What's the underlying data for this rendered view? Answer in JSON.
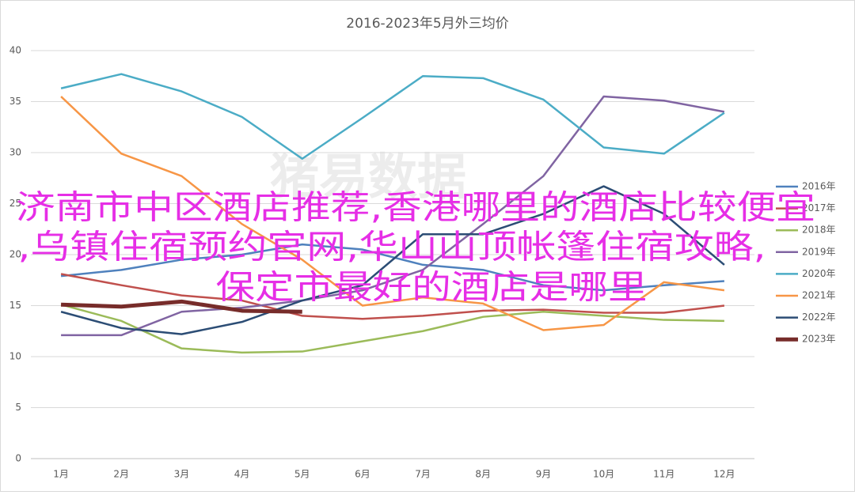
{
  "chart_data": {
    "type": "line",
    "title": "2016-2023年5月外三均价",
    "watermark": "猪易数据",
    "categories": [
      "1月",
      "2月",
      "3月",
      "4月",
      "5月",
      "6月",
      "7月",
      "8月",
      "9月",
      "10月",
      "11月",
      "12月"
    ],
    "ylim": [
      0,
      40
    ],
    "yticks": [
      0,
      5,
      10,
      15,
      20,
      25,
      30,
      35,
      40
    ],
    "grid": true,
    "legend": "right",
    "series": [
      {
        "name": "2016年",
        "color": "#4f81bd",
        "width": 2.5,
        "values": [
          17.9,
          18.5,
          19.5,
          20,
          21,
          20.5,
          19,
          18.5,
          17,
          16.5,
          17,
          17.4
        ]
      },
      {
        "name": "2017年",
        "color": "#c0504d",
        "width": 2.5,
        "values": [
          18.1,
          17,
          16,
          15.5,
          14,
          13.7,
          14,
          14.5,
          14.6,
          14.3,
          14.3,
          15
        ]
      },
      {
        "name": "2018年",
        "color": "#9bbb59",
        "width": 2.5,
        "values": [
          15.1,
          13.5,
          10.8,
          10.4,
          10.5,
          11.5,
          12.5,
          13.9,
          14.4,
          14,
          13.6,
          13.5
        ]
      },
      {
        "name": "2019年",
        "color": "#8064a2",
        "width": 2.5,
        "values": [
          12.1,
          12.1,
          14.4,
          14.8,
          15.5,
          16.5,
          18.5,
          23,
          27.7,
          35.5,
          35.1,
          34
        ]
      },
      {
        "name": "2020年",
        "color": "#4bacc6",
        "width": 2.5,
        "values": [
          36.3,
          37.7,
          36,
          33.5,
          29.4,
          33.4,
          37.5,
          37.3,
          35.2,
          30.5,
          29.9,
          33.9
        ]
      },
      {
        "name": "2021年",
        "color": "#f79646",
        "width": 2.5,
        "values": [
          35.5,
          29.9,
          27.7,
          23,
          19.5,
          15,
          15.8,
          15.2,
          12.6,
          13.1,
          17.3,
          16.5
        ]
      },
      {
        "name": "2022年",
        "color": "#2c4d75",
        "width": 2.5,
        "values": [
          14.4,
          12.8,
          12.2,
          13.4,
          15.5,
          17,
          22,
          22,
          24,
          26.7,
          24,
          19
        ]
      },
      {
        "name": "2023年",
        "color": "#772c2a",
        "width": 5,
        "values": [
          15.1,
          14.9,
          15.4,
          14.5,
          14.4,
          null,
          null,
          null,
          null,
          null,
          null,
          null
        ]
      }
    ]
  },
  "overlay": {
    "lines": [
      "济南市中区酒店推荐,香港哪里的酒店比较便宜",
      ",乌镇住宿预约官网,华山山顶帐篷住宿攻略,",
      "保定市最好的酒店是哪里"
    ]
  }
}
